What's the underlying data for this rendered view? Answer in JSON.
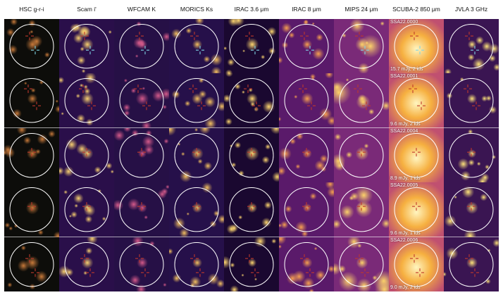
{
  "columns": [
    {
      "label": "HSC g-r-i"
    },
    {
      "label": "Scam i'"
    },
    {
      "label": "WFCAM K"
    },
    {
      "label": "MORICS Ks"
    },
    {
      "label": "IRAC 3.6 μm"
    },
    {
      "label": "IRAC 8 μm"
    },
    {
      "label": "MIPS 24 μm"
    },
    {
      "label": "SCUBA-2 850 μm"
    },
    {
      "label": "JVLA 3 GHz"
    }
  ],
  "rows": [
    {
      "id": "SSA22.0000",
      "flux": "15.7 mJy, 2 ids"
    },
    {
      "id": "SSA22.0001",
      "flux": "9.6 mJy, 2 ids"
    },
    {
      "id": "SSA22.0004",
      "flux": "8.9 mJy, 1 ids"
    },
    {
      "id": "SSA22.0005",
      "flux": "9.6 mJy, 1 ids"
    },
    {
      "id": "SSA22.0006",
      "flux": "9.0 mJy, 2 ids"
    }
  ],
  "colors": {
    "circle": "#ffffff",
    "marker_primary": "#c0392b",
    "marker_secondary": "#7fd6e6",
    "inferno_dark": "#1a0b3c",
    "inferno_mid": "#b4367a",
    "inferno_bright": "#fcd26a"
  }
}
